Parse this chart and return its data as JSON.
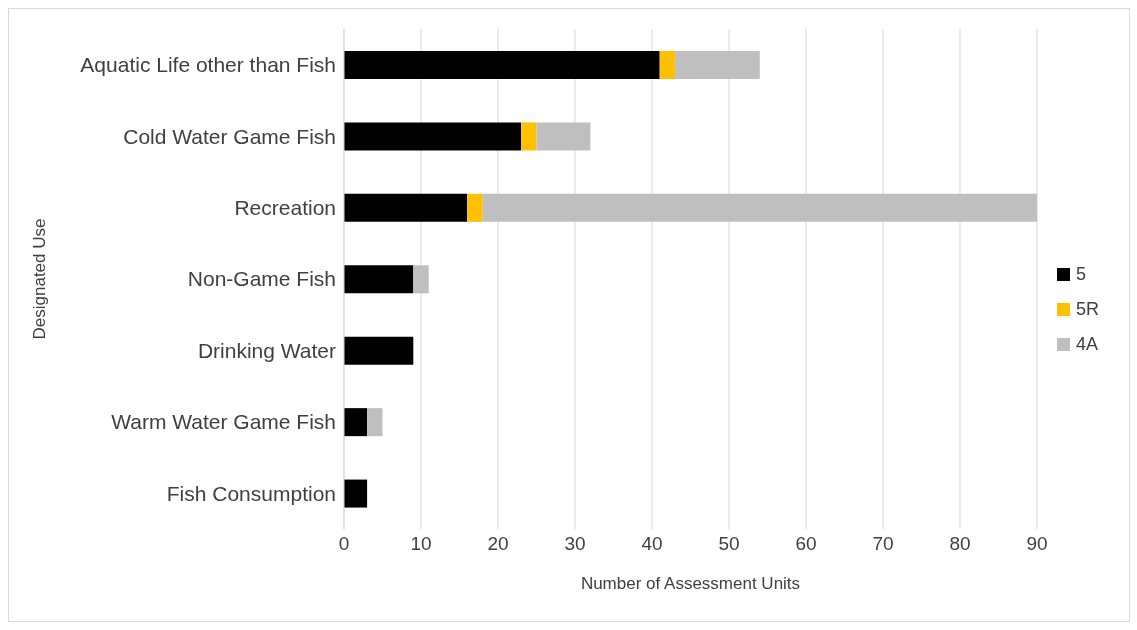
{
  "chart_data": {
    "type": "bar",
    "orientation": "horizontal",
    "stacked": true,
    "xlabel": "Number of Assessment Units",
    "ylabel": "Designated Use",
    "categories": [
      "Aquatic Life other than Fish",
      "Cold Water Game Fish",
      "Recreation",
      "Non-Game Fish",
      "Drinking Water",
      "Warm Water Game Fish",
      "Fish Consumption"
    ],
    "series": [
      {
        "name": "5",
        "color": "#000000",
        "values": [
          41,
          23,
          16,
          9,
          9,
          3,
          3
        ]
      },
      {
        "name": "5R",
        "color": "#ffc000",
        "values": [
          2,
          2,
          2,
          0,
          0,
          0,
          0
        ]
      },
      {
        "name": "4A",
        "color": "#bfbfbf",
        "values": [
          11,
          7,
          72,
          2,
          0,
          2,
          0
        ]
      }
    ],
    "xlim": [
      0,
      90
    ],
    "xticks": [
      0,
      10,
      20,
      30,
      40,
      50,
      60,
      70,
      80,
      90
    ],
    "grid": "x",
    "legend": "right"
  }
}
